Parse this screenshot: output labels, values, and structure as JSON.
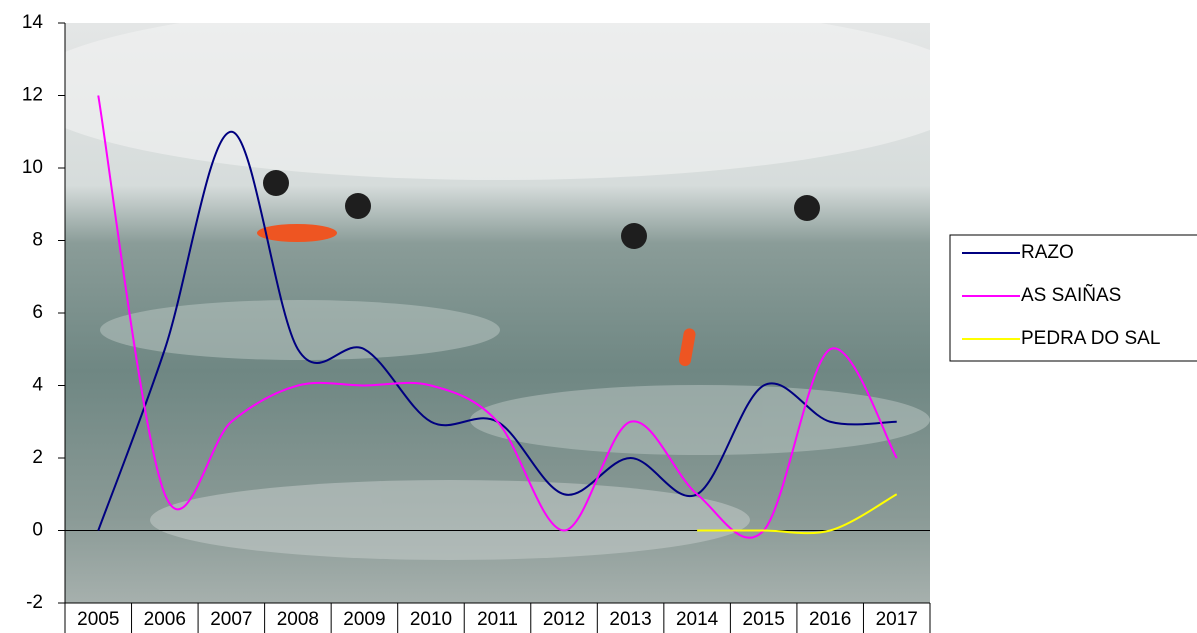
{
  "chart_data": {
    "type": "line",
    "categories": [
      "2005",
      "2006",
      "2007",
      "2008",
      "2009",
      "2010",
      "2011",
      "2012",
      "2013",
      "2014",
      "2015",
      "2016",
      "2017"
    ],
    "series": [
      {
        "name": "RAZO",
        "color": "#000080",
        "values": [
          0,
          5,
          11,
          5,
          5,
          3,
          3,
          1,
          2,
          1,
          4,
          3,
          3
        ]
      },
      {
        "name": "AS SAIÑAS",
        "color": "#ff00ff",
        "values": [
          12,
          1,
          3,
          4,
          4,
          4,
          3,
          0,
          3,
          1,
          0,
          5,
          2
        ]
      },
      {
        "name": "PEDRA DO SAL",
        "color": "#ffff00",
        "values": [
          null,
          null,
          null,
          null,
          null,
          null,
          null,
          null,
          null,
          0,
          0,
          0,
          1
        ]
      }
    ],
    "ylim": [
      -2,
      14
    ],
    "yticks": [
      -2,
      0,
      2,
      4,
      6,
      8,
      10,
      12,
      14
    ],
    "smooth": true,
    "legend": "right"
  }
}
